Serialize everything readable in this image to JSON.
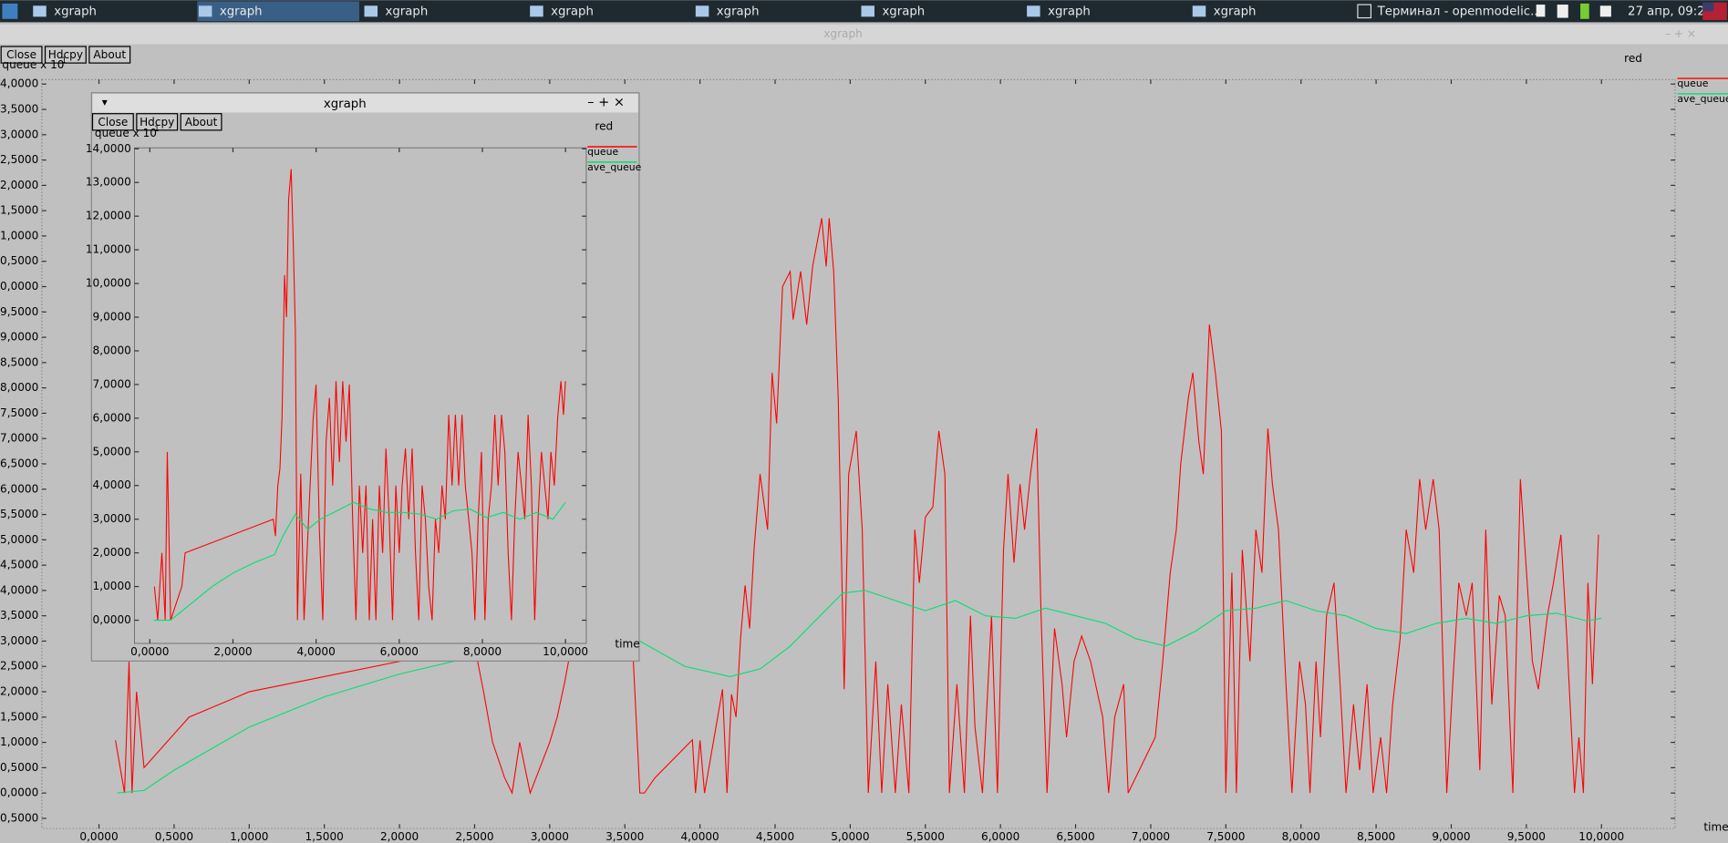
{
  "taskbar": {
    "tasks": [
      "xgraph",
      "xgraph",
      "xgraph",
      "xgraph",
      "xgraph",
      "xgraph",
      "xgraph",
      "xgraph"
    ],
    "terminal_task": "Терминал - openmodelic...",
    "clock": "27 апр, 09:24"
  },
  "windows": [
    {
      "title": "xgraph",
      "buttons": [
        "Close",
        "Hdcpy",
        "About"
      ]
    },
    {
      "title": "xgraph",
      "buttons": [
        "Close",
        "Hdcpy",
        "About"
      ]
    }
  ],
  "chart_data": [
    {
      "type": "line",
      "title": "red",
      "x_label": "time",
      "y_label": "queue x 10",
      "y_label_exponent": "1",
      "xlim": [
        -0.38,
        10.49
      ],
      "ylim": [
        -0.7,
        14.09
      ],
      "xticks": [
        {
          "value": 0,
          "label": "0,0000"
        },
        {
          "value": 0.5,
          "label": "0,5000"
        },
        {
          "value": 1,
          "label": "1,0000"
        },
        {
          "value": 1.5,
          "label": "1,5000"
        },
        {
          "value": 2,
          "label": "2,0000"
        },
        {
          "value": 2.5,
          "label": "2,5000"
        },
        {
          "value": 3,
          "label": "3,0000"
        },
        {
          "value": 3.5,
          "label": "3,5000"
        },
        {
          "value": 4,
          "label": "4,0000"
        },
        {
          "value": 4.5,
          "label": "4,5000"
        },
        {
          "value": 5,
          "label": "5,0000"
        },
        {
          "value": 5.5,
          "label": "5,5000"
        },
        {
          "value": 6,
          "label": "6,0000"
        },
        {
          "value": 6.5,
          "label": "6,5000"
        },
        {
          "value": 7,
          "label": "7,0000"
        },
        {
          "value": 7.5,
          "label": "7,5000"
        },
        {
          "value": 8,
          "label": "8,0000"
        },
        {
          "value": 8.5,
          "label": "8,5000"
        },
        {
          "value": 9,
          "label": "9,0000"
        },
        {
          "value": 9.5,
          "label": "9,5000"
        },
        {
          "value": 10,
          "label": "10,0000"
        }
      ],
      "yticks": [
        {
          "value": -0.5,
          "label": "-0,5000"
        },
        {
          "value": 0,
          "label": "0,0000"
        },
        {
          "value": 0.5,
          "label": "0,5000"
        },
        {
          "value": 1,
          "label": "1,0000"
        },
        {
          "value": 1.5,
          "label": "1,5000"
        },
        {
          "value": 2,
          "label": "2,0000"
        },
        {
          "value": 2.5,
          "label": "2,5000"
        },
        {
          "value": 3,
          "label": "3,0000"
        },
        {
          "value": 3.5,
          "label": "3,5000"
        },
        {
          "value": 4,
          "label": "4,0000"
        },
        {
          "value": 4.5,
          "label": "4,5000"
        },
        {
          "value": 5,
          "label": "5,0000"
        },
        {
          "value": 5.5,
          "label": "5,5000"
        },
        {
          "value": 6,
          "label": "6,0000"
        },
        {
          "value": 6.5,
          "label": "6,5000"
        },
        {
          "value": 7,
          "label": "7,0000"
        },
        {
          "value": 7.5,
          "label": "7,5000"
        },
        {
          "value": 8,
          "label": "8,0000"
        },
        {
          "value": 8.5,
          "label": "8,5000"
        },
        {
          "value": 9,
          "label": "9,0000"
        },
        {
          "value": 9.5,
          "label": "9,5000"
        },
        {
          "value": 10,
          "label": "10,0000"
        },
        {
          "value": 10.5,
          "label": "10,5000"
        },
        {
          "value": 11,
          "label": "11,0000"
        },
        {
          "value": 11.5,
          "label": "11,5000"
        },
        {
          "value": 12,
          "label": "12,0000"
        },
        {
          "value": 12.5,
          "label": "12,5000"
        },
        {
          "value": 13,
          "label": "13,0000"
        },
        {
          "value": 13.5,
          "label": "13,5000"
        },
        {
          "value": 14,
          "label": "14,0000"
        }
      ],
      "series": [
        {
          "name": "queue",
          "color": "#ff0000",
          "x": [
            0.11,
            0.17,
            0.2,
            0.22,
            0.25,
            0.3,
            0.6,
            1.0,
            2.5,
            2.56,
            2.62,
            2.7,
            2.75,
            2.8,
            2.87,
            3.0,
            3.05,
            3.1,
            3.15,
            3.55,
            3.6,
            3.63,
            3.7,
            3.95,
            3.97,
            4.0,
            4.03,
            4.15,
            4.18,
            4.21,
            4.24,
            4.27,
            4.3,
            4.33,
            4.36,
            4.4,
            4.45,
            4.48,
            4.51,
            4.55,
            4.6,
            4.62,
            4.67,
            4.71,
            4.75,
            4.81,
            4.84,
            4.86,
            4.89,
            4.92,
            4.96,
            4.99,
            5.04,
            5.08,
            5.12,
            5.17,
            5.21,
            5.25,
            5.3,
            5.34,
            5.39,
            5.43,
            5.46,
            5.5,
            5.55,
            5.59,
            5.63,
            5.66,
            5.71,
            5.76,
            5.8,
            5.83,
            5.88,
            5.94,
            5.98,
            6.02,
            6.05,
            6.09,
            6.13,
            6.16,
            6.2,
            6.24,
            6.27,
            6.31,
            6.36,
            6.41,
            6.44,
            6.49,
            6.54,
            6.6,
            6.68,
            6.72,
            6.76,
            6.82,
            6.85,
            7.03,
            7.08,
            7.13,
            7.17,
            7.2,
            7.25,
            7.28,
            7.32,
            7.35,
            7.39,
            7.43,
            7.47,
            7.5,
            7.54,
            7.57,
            7.61,
            7.66,
            7.7,
            7.74,
            7.78,
            7.81,
            7.85,
            7.9,
            7.94,
            7.99,
            8.03,
            8.06,
            8.1,
            8.13,
            8.17,
            8.22,
            8.26,
            8.3,
            8.35,
            8.39,
            8.44,
            8.48,
            8.53,
            8.57,
            8.61,
            8.66,
            8.7,
            8.75,
            8.79,
            8.83,
            8.88,
            8.92,
            8.97,
            9.01,
            9.05,
            9.1,
            9.14,
            9.19,
            9.23,
            9.27,
            9.32,
            9.36,
            9.41,
            9.46,
            9.54,
            9.58,
            9.64,
            9.68,
            9.73,
            9.77,
            9.82,
            9.85,
            9.88,
            9.91,
            9.94,
            9.98
          ],
          "values": [
            1.04,
            0,
            2.6,
            0,
            2.0,
            0.5,
            1.5,
            2.0,
            2.9,
            2.0,
            1.0,
            0.3,
            0,
            1.0,
            0,
            1.0,
            1.5,
            2.2,
            3.0,
            3.0,
            0,
            0,
            0.3,
            1.05,
            0,
            1.04,
            0,
            2.05,
            0,
            1.95,
            1.5,
            3.05,
            4.1,
            3.25,
            4.8,
            6.3,
            5.2,
            8.3,
            7.3,
            10.0,
            10.3,
            9.35,
            10.3,
            9.25,
            10.4,
            11.35,
            10.4,
            11.35,
            10.3,
            7.8,
            2.05,
            6.3,
            7.15,
            5.2,
            0,
            2.6,
            0,
            2.15,
            0,
            1.75,
            0,
            5.2,
            4.15,
            5.45,
            5.65,
            7.15,
            6.3,
            0,
            2.15,
            0,
            3.5,
            1.3,
            0,
            3.5,
            0,
            4.8,
            6.3,
            4.55,
            6.1,
            5.2,
            6.3,
            7.2,
            3.5,
            0,
            3.25,
            2.15,
            1.1,
            2.6,
            3.1,
            2.6,
            1.5,
            0,
            1.5,
            2.15,
            0,
            1.1,
            2.6,
            4.35,
            5.2,
            6.5,
            7.8,
            8.3,
            6.95,
            6.3,
            9.25,
            8.3,
            7.15,
            0,
            4.35,
            0,
            4.8,
            2.6,
            5.2,
            4.35,
            7.2,
            6.1,
            5.2,
            2.15,
            0,
            2.6,
            1.75,
            0,
            2.6,
            1.1,
            3.5,
            4.15,
            2.15,
            0,
            1.75,
            0.45,
            2.15,
            0,
            1.1,
            0,
            1.75,
            3.05,
            5.2,
            4.35,
            6.2,
            5.2,
            6.2,
            5.2,
            0,
            2.15,
            4.15,
            3.5,
            4.15,
            0.45,
            5.2,
            1.75,
            3.9,
            3.5,
            0,
            6.2,
            2.6,
            2.05,
            3.5,
            4.15,
            5.1,
            3.05,
            0,
            1.1,
            0,
            4.15,
            2.15,
            5.1
          ]
        },
        {
          "name": "ave_queue",
          "color": "#00e070",
          "x": [
            0.12,
            0.3,
            0.5,
            1.0,
            1.5,
            2.0,
            2.5,
            3.0,
            3.3,
            3.6,
            3.9,
            4.2,
            4.4,
            4.6,
            4.8,
            4.95,
            5.1,
            5.3,
            5.5,
            5.7,
            5.9,
            6.1,
            6.3,
            6.5,
            6.7,
            6.9,
            7.1,
            7.3,
            7.5,
            7.7,
            7.9,
            8.1,
            8.3,
            8.5,
            8.7,
            8.9,
            9.1,
            9.3,
            9.5,
            9.7,
            9.9,
            10.0
          ],
          "values": [
            0,
            0.05,
            0.45,
            1.3,
            1.9,
            2.35,
            2.7,
            2.95,
            3.2,
            3.0,
            2.5,
            2.3,
            2.45,
            2.9,
            3.5,
            3.95,
            4.0,
            3.8,
            3.6,
            3.8,
            3.5,
            3.45,
            3.65,
            3.5,
            3.35,
            3.05,
            2.9,
            3.2,
            3.6,
            3.65,
            3.8,
            3.6,
            3.5,
            3.25,
            3.15,
            3.35,
            3.45,
            3.35,
            3.5,
            3.55,
            3.4,
            3.45
          ]
        }
      ]
    },
    {
      "type": "line",
      "title": "red",
      "x_label": "time",
      "y_label": "queue x 10",
      "y_label_exponent": "1",
      "xlim": [
        -0.37,
        10.5
      ],
      "ylim": [
        -0.69,
        14.03
      ],
      "xticks": [
        {
          "value": 0,
          "label": "0,0000"
        },
        {
          "value": 2,
          "label": "2,0000"
        },
        {
          "value": 4,
          "label": "4,0000"
        },
        {
          "value": 6,
          "label": "6,0000"
        },
        {
          "value": 8,
          "label": "8,0000"
        },
        {
          "value": 10,
          "label": "10,0000"
        }
      ],
      "yticks": [
        {
          "value": 0,
          "label": "0,0000"
        },
        {
          "value": 1,
          "label": "1,0000"
        },
        {
          "value": 2,
          "label": "2,0000"
        },
        {
          "value": 3,
          "label": "3,0000"
        },
        {
          "value": 4,
          "label": "4,0000"
        },
        {
          "value": 5,
          "label": "5,0000"
        },
        {
          "value": 6,
          "label": "6,0000"
        },
        {
          "value": 7,
          "label": "7,0000"
        },
        {
          "value": 8,
          "label": "8,0000"
        },
        {
          "value": 9,
          "label": "9,0000"
        },
        {
          "value": 10,
          "label": "10,0000"
        },
        {
          "value": 11,
          "label": "11,0000"
        },
        {
          "value": 12,
          "label": "12,0000"
        },
        {
          "value": 13,
          "label": "13,0000"
        },
        {
          "value": 14,
          "label": "14,0000"
        }
      ],
      "series": [
        {
          "name": "queue",
          "color": "#ff0000",
          "x": [
            0.11,
            0.19,
            0.29,
            0.37,
            0.42,
            0.5,
            0.77,
            0.85,
            2.97,
            3.02,
            3.08,
            3.13,
            3.18,
            3.24,
            3.29,
            3.34,
            3.4,
            3.45,
            3.5,
            3.55,
            3.63,
            3.71,
            3.82,
            3.93,
            4.0,
            4.08,
            4.16,
            4.24,
            4.32,
            4.4,
            4.48,
            4.56,
            4.64,
            4.72,
            4.8,
            4.88,
            4.96,
            5.04,
            5.12,
            5.2,
            5.28,
            5.36,
            5.44,
            5.52,
            5.6,
            5.68,
            5.76,
            5.84,
            5.92,
            6.0,
            6.07,
            6.15,
            6.23,
            6.31,
            6.39,
            6.47,
            6.55,
            6.63,
            6.71,
            6.79,
            6.87,
            6.95,
            7.03,
            7.11,
            7.19,
            7.27,
            7.35,
            7.43,
            7.51,
            7.59,
            7.67,
            7.75,
            7.82,
            7.9,
            7.98,
            8.06,
            8.14,
            8.22,
            8.3,
            8.38,
            8.46,
            8.54,
            8.62,
            8.7,
            8.78,
            8.86,
            8.94,
            9.02,
            9.1,
            9.18,
            9.26,
            9.34,
            9.42,
            9.5,
            9.58,
            9.65,
            9.73,
            9.81,
            9.89,
            9.95,
            10.0
          ],
          "values": [
            1,
            0,
            2,
            0,
            5,
            0,
            1,
            2,
            3,
            2.5,
            4,
            4.5,
            6,
            10.25,
            9,
            12.5,
            13.4,
            11.2,
            8.6,
            0,
            4.35,
            0,
            3,
            6,
            7,
            2.7,
            0,
            5.3,
            6.6,
            4,
            7.1,
            4.7,
            7.1,
            5.3,
            7,
            3,
            0,
            4,
            2,
            4,
            0,
            3,
            0,
            4,
            2,
            5.1,
            3,
            0,
            4,
            2,
            4,
            5.1,
            3,
            5.1,
            2,
            0,
            4,
            3,
            1,
            0,
            3,
            2,
            4,
            3,
            6.1,
            4,
            6.1,
            4,
            6.1,
            4,
            3,
            2,
            0,
            3,
            5,
            0,
            3,
            4,
            6.1,
            4,
            6.1,
            5,
            2,
            0,
            3,
            5,
            4,
            3,
            6.1,
            4,
            0,
            3,
            5,
            4,
            3,
            5,
            4,
            6,
            7.1,
            6.1,
            7.1
          ]
        },
        {
          "name": "ave_queue",
          "color": "#00e070",
          "x": [
            0.1,
            0.5,
            0.9,
            1.5,
            2.0,
            2.5,
            3.0,
            3.2,
            3.5,
            3.8,
            4.1,
            4.5,
            4.9,
            5.3,
            5.7,
            6.1,
            6.5,
            6.9,
            7.3,
            7.7,
            8.1,
            8.5,
            8.9,
            9.3,
            9.7,
            10.0
          ],
          "values": [
            0,
            0,
            0.4,
            1.0,
            1.4,
            1.7,
            1.95,
            2.5,
            3.15,
            2.7,
            3.0,
            3.25,
            3.5,
            3.3,
            3.2,
            3.2,
            3.15,
            3.0,
            3.25,
            3.3,
            3.05,
            3.2,
            3.0,
            3.2,
            3.0,
            3.5
          ]
        }
      ]
    }
  ]
}
